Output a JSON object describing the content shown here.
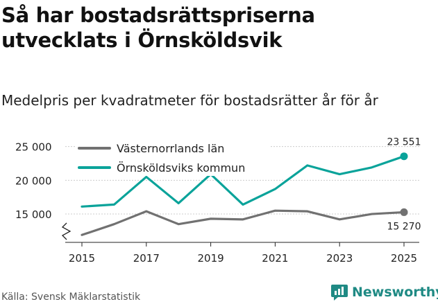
{
  "title": "Så har bostadsrättspriserna utvecklats i Örnsköldsvik",
  "subtitle": "Medelpris per kvadratmeter för bostadsrätter år för år",
  "source": "Källa: Svensk Mäklarstatistik",
  "brand": "Newsworthy",
  "colors": {
    "county": "#717171",
    "municipality": "#0aa39a",
    "grid": "#cccccc",
    "text": "#222222",
    "brand": "#1f8a84"
  },
  "chart_data": {
    "type": "line",
    "x": [
      2015,
      2016,
      2017,
      2018,
      2019,
      2020,
      2021,
      2022,
      2023,
      2024,
      2025
    ],
    "x_tick_labels": [
      "2015",
      "2017",
      "2019",
      "2021",
      "2023",
      "2025"
    ],
    "y_tick_labels": [
      "25 000",
      "20 000",
      "15 000"
    ],
    "y_ticks": [
      25000,
      20000,
      15000
    ],
    "ylim": [
      10800,
      26700
    ],
    "xlim": [
      2015,
      2025
    ],
    "axis_break": true,
    "grid": true,
    "legend_placement": "top-left",
    "series": [
      {
        "name": "Västernorrlands län",
        "color": "#717171",
        "values": [
          11900,
          13500,
          15400,
          13500,
          14300,
          14200,
          15500,
          15400,
          14200,
          15000,
          15270
        ],
        "end_label": "15 270"
      },
      {
        "name": "Örnsköldsviks kommun",
        "color": "#0aa39a",
        "values": [
          16100,
          16400,
          20500,
          16600,
          20900,
          16400,
          18700,
          22200,
          20900,
          21900,
          23551
        ],
        "end_label": "23 551"
      }
    ]
  }
}
